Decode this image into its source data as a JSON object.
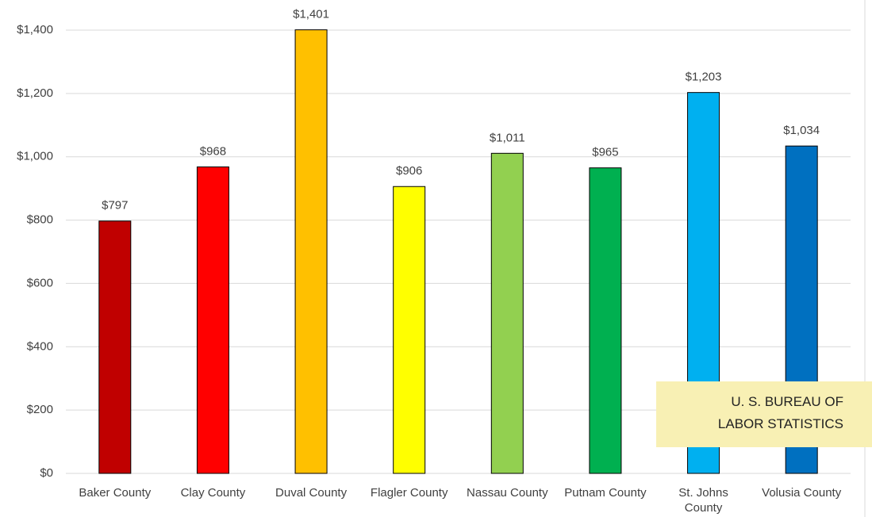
{
  "chart_data": {
    "type": "bar",
    "categories": [
      "Baker County",
      "Clay County",
      "Duval County",
      "Flagler County",
      "Nassau County",
      "Putnam County",
      "St. Johns County",
      "Volusia County"
    ],
    "values": [
      797,
      968,
      1401,
      906,
      1011,
      965,
      1203,
      1034
    ],
    "value_labels": [
      "$797",
      "$968",
      "$1,401",
      "$906",
      "$1,011",
      "$965",
      "$1,203",
      "$1,034"
    ],
    "colors": [
      "#c00000",
      "#ff0000",
      "#ffc000",
      "#ffff00",
      "#92d050",
      "#00b050",
      "#00b0f0",
      "#0070c0"
    ],
    "ylim": [
      0,
      1400
    ],
    "yticks": [
      {
        "value": 0,
        "label": "$0"
      },
      {
        "value": 200,
        "label": "$200"
      },
      {
        "value": 400,
        "label": "$400"
      },
      {
        "value": 600,
        "label": "$600"
      },
      {
        "value": 800,
        "label": "$800"
      },
      {
        "value": 1000,
        "label": "$1,000"
      },
      {
        "value": 1200,
        "label": "$1,200"
      },
      {
        "value": 1400,
        "label": "$1,400"
      }
    ],
    "grid": true,
    "annotation": [
      "U. S. BUREAU OF",
      "LABOR STATISTICS"
    ]
  }
}
